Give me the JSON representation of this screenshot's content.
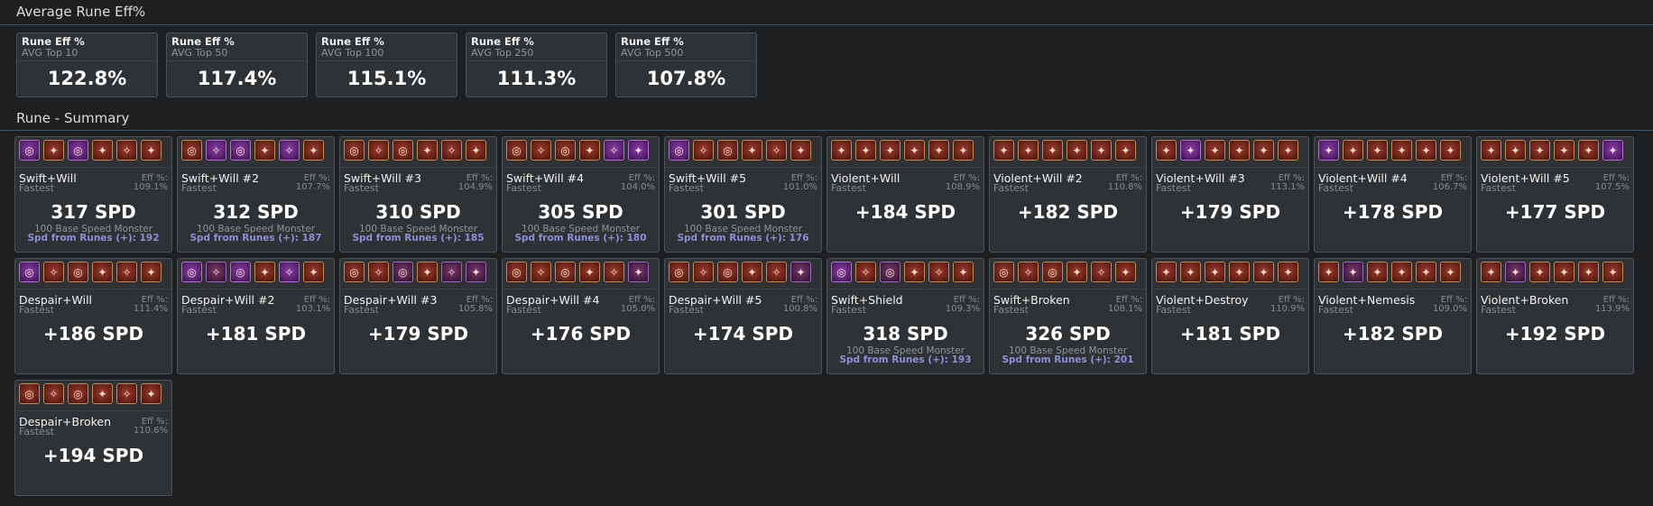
{
  "header": {
    "avg_title": "Average Rune Eff%",
    "summary_title": "Rune - Summary"
  },
  "avg_cards": [
    {
      "title": "Rune Eff %",
      "subtitle": "AVG Top 10",
      "value": "122.8%"
    },
    {
      "title": "Rune Eff %",
      "subtitle": "AVG Top 50",
      "value": "117.4%"
    },
    {
      "title": "Rune Eff %",
      "subtitle": "AVG Top 100",
      "value": "115.1%"
    },
    {
      "title": "Rune Eff %",
      "subtitle": "AVG Top 250",
      "value": "111.3%"
    },
    {
      "title": "Rune Eff %",
      "subtitle": "AVG Top 500",
      "value": "107.8%"
    }
  ],
  "labels": {
    "eff": "Eff %:",
    "base_monster": "100 Base Speed Monster"
  },
  "cards": [
    {
      "name": "Swift+Will",
      "mode": "Fastest",
      "eff": "109.1%",
      "spd": "317 SPD",
      "base": "100 Base Speed Monster",
      "runes_spd": "Spd from Runes (+): 192",
      "runes": [
        "legend",
        "rare",
        "legend",
        "rare",
        "rare",
        "rare"
      ],
      "glyphs": [
        "◎",
        "✦",
        "◎",
        "✦",
        "✧",
        "✦"
      ]
    },
    {
      "name": "Swift+Will #2",
      "mode": "Fastest",
      "eff": "107.7%",
      "spd": "312 SPD",
      "base": "100 Base Speed Monster",
      "runes_spd": "Spd from Runes (+): 187",
      "runes": [
        "rare",
        "legend",
        "legend",
        "rare",
        "legend",
        "rare"
      ],
      "glyphs": [
        "◎",
        "✧",
        "◎",
        "✦",
        "✧",
        "✦"
      ]
    },
    {
      "name": "Swift+Will #3",
      "mode": "Fastest",
      "eff": "104.9%",
      "spd": "310 SPD",
      "base": "100 Base Speed Monster",
      "runes_spd": "Spd from Runes (+): 185",
      "runes": [
        "rare",
        "rare",
        "rare",
        "rare",
        "rare",
        "rare"
      ],
      "glyphs": [
        "◎",
        "✧",
        "◎",
        "✦",
        "✧",
        "✦"
      ]
    },
    {
      "name": "Swift+Will #4",
      "mode": "Fastest",
      "eff": "104.0%",
      "spd": "305 SPD",
      "base": "100 Base Speed Monster",
      "runes_spd": "Spd from Runes (+): 180",
      "runes": [
        "rare",
        "rare",
        "rare",
        "rare",
        "legend",
        "legend"
      ],
      "glyphs": [
        "◎",
        "✧",
        "◎",
        "✦",
        "✧",
        "✦"
      ]
    },
    {
      "name": "Swift+Will #5",
      "mode": "Fastest",
      "eff": "101.0%",
      "spd": "301 SPD",
      "base": "100 Base Speed Monster",
      "runes_spd": "Spd from Runes (+): 176",
      "runes": [
        "legend",
        "rare",
        "rare",
        "rare",
        "rare",
        "rare"
      ],
      "glyphs": [
        "◎",
        "✧",
        "◎",
        "✦",
        "✧",
        "✦"
      ]
    },
    {
      "name": "Violent+Will",
      "mode": "Fastest",
      "eff": "108.9%",
      "spd": "+184 SPD",
      "base": "",
      "runes_spd": "",
      "runes": [
        "rare",
        "rare",
        "rare",
        "rare",
        "rare",
        "rare"
      ],
      "glyphs": [
        "✦",
        "✦",
        "✦",
        "✦",
        "✦",
        "✦"
      ]
    },
    {
      "name": "Violent+Will #2",
      "mode": "Fastest",
      "eff": "110.8%",
      "spd": "+182 SPD",
      "base": "",
      "runes_spd": "",
      "runes": [
        "rare",
        "rare",
        "rare",
        "rare",
        "rare",
        "rare"
      ],
      "glyphs": [
        "✦",
        "✦",
        "✦",
        "✦",
        "✦",
        "✦"
      ]
    },
    {
      "name": "Violent+Will #3",
      "mode": "Fastest",
      "eff": "113.1%",
      "spd": "+179 SPD",
      "base": "",
      "runes_spd": "",
      "runes": [
        "rare",
        "legend",
        "rare",
        "rare",
        "rare",
        "rare"
      ],
      "glyphs": [
        "✦",
        "✦",
        "✦",
        "✦",
        "✦",
        "✦"
      ]
    },
    {
      "name": "Violent+Will #4",
      "mode": "Fastest",
      "eff": "106.7%",
      "spd": "+178 SPD",
      "base": "",
      "runes_spd": "",
      "runes": [
        "legend",
        "rare",
        "rare",
        "rare",
        "rare",
        "rare"
      ],
      "glyphs": [
        "✦",
        "✦",
        "✦",
        "✦",
        "✦",
        "✦"
      ]
    },
    {
      "name": "Violent+Will #5",
      "mode": "Fastest",
      "eff": "107.5%",
      "spd": "+177 SPD",
      "base": "",
      "runes_spd": "",
      "runes": [
        "rare",
        "rare",
        "rare",
        "rare",
        "rare",
        "legend"
      ],
      "glyphs": [
        "✦",
        "✦",
        "✦",
        "✦",
        "✦",
        "✦"
      ]
    },
    {
      "name": "Despair+Will",
      "mode": "Fastest",
      "eff": "111.4%",
      "spd": "+186 SPD",
      "base": "",
      "runes_spd": "",
      "runes": [
        "legend",
        "rare",
        "rare",
        "rare",
        "rare",
        "rare"
      ],
      "glyphs": [
        "◎",
        "✧",
        "◎",
        "✦",
        "✧",
        "✦"
      ]
    },
    {
      "name": "Despair+Will #2",
      "mode": "Fastest",
      "eff": "103.1%",
      "spd": "+181 SPD",
      "base": "",
      "runes_spd": "",
      "runes": [
        "legend",
        "epic",
        "legend",
        "rare",
        "legend",
        "rare"
      ],
      "glyphs": [
        "◎",
        "✧",
        "◎",
        "✦",
        "✧",
        "✦"
      ]
    },
    {
      "name": "Despair+Will #3",
      "mode": "Fastest",
      "eff": "105.8%",
      "spd": "+179 SPD",
      "base": "",
      "runes_spd": "",
      "runes": [
        "rare",
        "rare",
        "epic",
        "rare",
        "epic",
        "epic"
      ],
      "glyphs": [
        "◎",
        "✧",
        "◎",
        "✦",
        "✧",
        "✦"
      ]
    },
    {
      "name": "Despair+Will #4",
      "mode": "Fastest",
      "eff": "105.0%",
      "spd": "+176 SPD",
      "base": "",
      "runes_spd": "",
      "runes": [
        "rare",
        "rare",
        "rare",
        "rare",
        "rare",
        "epic"
      ],
      "glyphs": [
        "◎",
        "✧",
        "◎",
        "✦",
        "✧",
        "✦"
      ]
    },
    {
      "name": "Despair+Will #5",
      "mode": "Fastest",
      "eff": "100.8%",
      "spd": "+174 SPD",
      "base": "",
      "runes_spd": "",
      "runes": [
        "rare",
        "rare",
        "rare",
        "rare",
        "rare",
        "epic"
      ],
      "glyphs": [
        "◎",
        "✧",
        "◎",
        "✦",
        "✧",
        "✦"
      ]
    },
    {
      "name": "Swift+Shield",
      "mode": "Fastest",
      "eff": "109.3%",
      "spd": "318 SPD",
      "base": "100 Base Speed Monster",
      "runes_spd": "Spd from Runes (+): 193",
      "runes": [
        "legend",
        "rare",
        "epic",
        "rare",
        "rare",
        "rare"
      ],
      "glyphs": [
        "◎",
        "✧",
        "◎",
        "✦",
        "✧",
        "✦"
      ]
    },
    {
      "name": "Swift+Broken",
      "mode": "Fastest",
      "eff": "108.1%",
      "spd": "326 SPD",
      "base": "100 Base Speed Monster",
      "runes_spd": "Spd from Runes (+): 201",
      "runes": [
        "rare",
        "rare",
        "rare",
        "rare",
        "rare",
        "rare"
      ],
      "glyphs": [
        "◎",
        "✧",
        "◎",
        "✦",
        "✧",
        "✦"
      ]
    },
    {
      "name": "Violent+Destroy",
      "mode": "Fastest",
      "eff": "110.9%",
      "spd": "+181 SPD",
      "base": "",
      "runes_spd": "",
      "runes": [
        "rare",
        "rare",
        "rare",
        "rare",
        "rare",
        "rare"
      ],
      "glyphs": [
        "✦",
        "✦",
        "✦",
        "✦",
        "✦",
        "✦"
      ]
    },
    {
      "name": "Violent+Nemesis",
      "mode": "Fastest",
      "eff": "109.0%",
      "spd": "+182 SPD",
      "base": "",
      "runes_spd": "",
      "runes": [
        "rare",
        "epic",
        "rare",
        "rare",
        "rare",
        "rare"
      ],
      "glyphs": [
        "✦",
        "✦",
        "✦",
        "✦",
        "✦",
        "✦"
      ]
    },
    {
      "name": "Violent+Broken",
      "mode": "Fastest",
      "eff": "113.9%",
      "spd": "+192 SPD",
      "base": "",
      "runes_spd": "",
      "runes": [
        "rare",
        "epic",
        "rare",
        "rare",
        "rare",
        "rare"
      ],
      "glyphs": [
        "✦",
        "✦",
        "✦",
        "✦",
        "✦",
        "✦"
      ]
    },
    {
      "name": "Despair+Broken",
      "mode": "Fastest",
      "eff": "110.6%",
      "spd": "+194 SPD",
      "base": "",
      "runes_spd": "",
      "runes": [
        "rare",
        "rare",
        "rare",
        "rare",
        "rare",
        "rare"
      ],
      "glyphs": [
        "◎",
        "✧",
        "◎",
        "✦",
        "✧",
        "✦"
      ]
    }
  ]
}
